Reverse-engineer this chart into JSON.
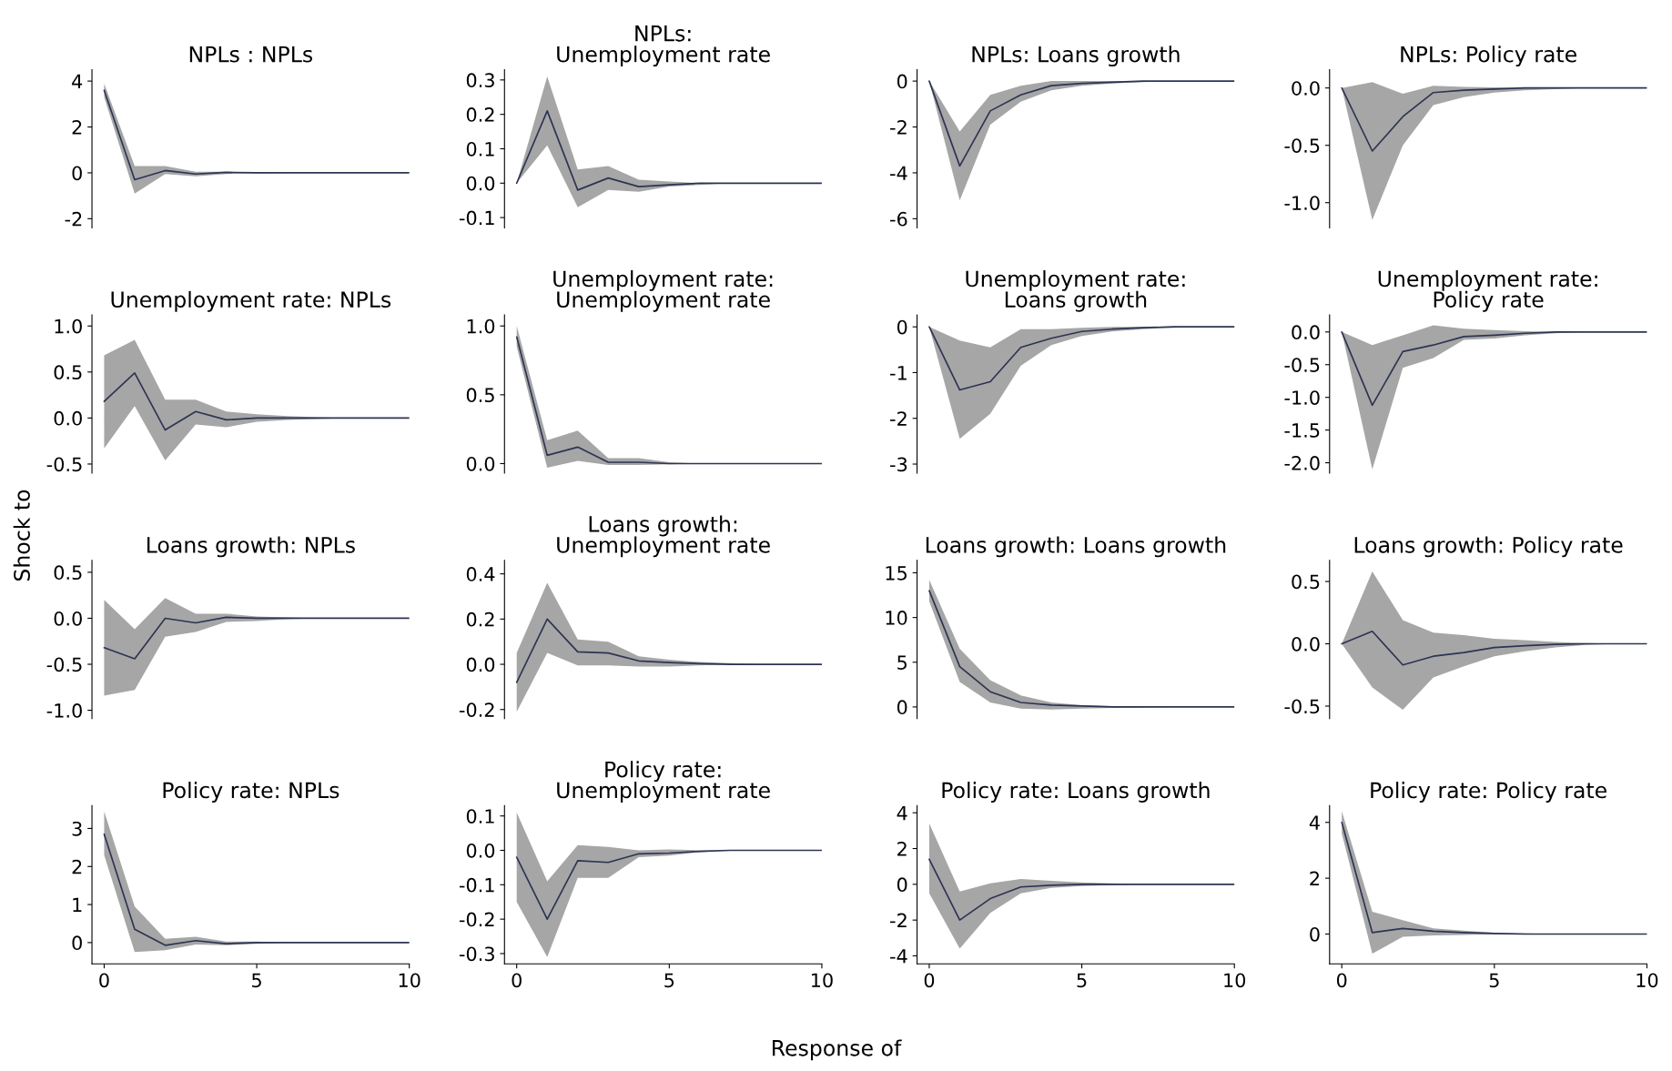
{
  "chart_data": [
    {
      "type": "line",
      "title": "NPLs : NPLs",
      "x": [
        0,
        1,
        2,
        3,
        4,
        5,
        6,
        7,
        8,
        9,
        10
      ],
      "series": [
        {
          "color": "#2d3452",
          "values": [
            3.6,
            -0.3,
            0.1,
            -0.05,
            0.02,
            0,
            0,
            0,
            0,
            0,
            0
          ],
          "lower": [
            3.3,
            -0.9,
            -0.05,
            -0.15,
            -0.05,
            -0.02,
            0,
            0,
            0,
            0,
            0
          ],
          "upper": [
            3.9,
            0.3,
            0.3,
            0.05,
            0.05,
            0.02,
            0,
            0,
            0,
            0,
            0
          ]
        }
      ],
      "xlim": [
        -0.4,
        10
      ],
      "xticks": [
        0,
        5,
        10
      ],
      "ylim": [
        -2.4,
        4.5
      ],
      "yticks": [
        -2,
        0,
        2,
        4
      ],
      "tick_labels": "y"
    },
    {
      "type": "line",
      "title": "NPLs:\nUnemployment rate",
      "x": [
        0,
        1,
        2,
        3,
        4,
        5,
        6,
        7,
        8,
        9,
        10
      ],
      "series": [
        {
          "color": "#2d3452",
          "values": [
            0,
            0.21,
            -0.02,
            0.015,
            -0.01,
            -0.005,
            0,
            0,
            0,
            0,
            0
          ],
          "lower": [
            0,
            0.11,
            -0.07,
            -0.02,
            -0.025,
            -0.01,
            -0.005,
            0,
            0,
            0,
            0
          ],
          "upper": [
            0,
            0.31,
            0.04,
            0.05,
            0.01,
            0.005,
            0,
            0,
            0,
            0,
            0
          ]
        }
      ],
      "xlim": [
        -0.4,
        10
      ],
      "xticks": [
        0,
        5,
        10
      ],
      "ylim": [
        -0.13,
        0.33
      ],
      "yticks": [
        {
          "value": -0.1,
          "label": "-0.1"
        },
        {
          "value": 0,
          "label": "0.0"
        },
        {
          "value": 0.1,
          "label": "0.1"
        },
        {
          "value": 0.2,
          "label": "0.2"
        },
        {
          "value": 0.3,
          "label": "0.3"
        }
      ],
      "tick_labels": "y"
    },
    {
      "type": "line",
      "title": "NPLs: Loans growth",
      "x": [
        0,
        1,
        2,
        3,
        4,
        5,
        6,
        7,
        8,
        9,
        10
      ],
      "series": [
        {
          "color": "#2d3452",
          "values": [
            0,
            -3.7,
            -1.3,
            -0.6,
            -0.2,
            -0.1,
            -0.05,
            0,
            0,
            0,
            0
          ],
          "lower": [
            0,
            -5.2,
            -1.9,
            -0.9,
            -0.4,
            -0.2,
            -0.1,
            -0.05,
            0,
            0,
            0
          ],
          "upper": [
            0,
            -2.2,
            -0.6,
            -0.2,
            0,
            0,
            0,
            0,
            0,
            0,
            0
          ]
        }
      ],
      "xlim": [
        -0.4,
        10
      ],
      "xticks": [
        0,
        5,
        10
      ],
      "ylim": [
        -6.4,
        0.5
      ],
      "yticks": [
        -6,
        -4,
        -2,
        0
      ],
      "tick_labels": "y"
    },
    {
      "type": "line",
      "title": "NPLs: Policy rate",
      "x": [
        0,
        1,
        2,
        3,
        4,
        5,
        6,
        7,
        8,
        9,
        10
      ],
      "series": [
        {
          "color": "#2d3452",
          "values": [
            0,
            -0.55,
            -0.25,
            -0.04,
            -0.02,
            -0.01,
            0,
            0,
            0,
            0,
            0
          ],
          "lower": [
            0,
            -1.15,
            -0.5,
            -0.15,
            -0.08,
            -0.04,
            -0.02,
            -0.01,
            0,
            0,
            0
          ],
          "upper": [
            0,
            0.05,
            -0.05,
            0.02,
            0.01,
            0.005,
            0,
            0,
            0,
            0,
            0
          ]
        }
      ],
      "xlim": [
        -0.4,
        10
      ],
      "xticks": [
        0,
        5,
        10
      ],
      "ylim": [
        -1.22,
        0.16
      ],
      "yticks": [
        {
          "value": -1,
          "label": "-1.0"
        },
        {
          "value": -0.5,
          "label": "-0.5"
        },
        {
          "value": 0,
          "label": "0.0"
        }
      ],
      "tick_labels": "y"
    },
    {
      "type": "line",
      "title": "Unemployment rate: NPLs",
      "x": [
        0,
        1,
        2,
        3,
        4,
        5,
        6,
        7,
        8,
        9,
        10
      ],
      "series": [
        {
          "color": "#2d3452",
          "values": [
            0.18,
            0.49,
            -0.13,
            0.07,
            -0.02,
            0,
            0,
            0,
            0,
            0,
            0
          ],
          "lower": [
            -0.33,
            0.13,
            -0.46,
            -0.07,
            -0.1,
            -0.04,
            -0.02,
            -0.01,
            0,
            0,
            0
          ],
          "upper": [
            0.68,
            0.85,
            0.2,
            0.2,
            0.07,
            0.04,
            0.02,
            0.01,
            0,
            0,
            0
          ]
        }
      ],
      "xlim": [
        -0.4,
        10
      ],
      "xticks": [
        0,
        5,
        10
      ],
      "ylim": [
        -0.6,
        1.12
      ],
      "yticks": [
        {
          "value": -0.5,
          "label": "-0.5"
        },
        {
          "value": 0,
          "label": "0.0"
        },
        {
          "value": 0.5,
          "label": "0.5"
        },
        {
          "value": 1,
          "label": "1.0"
        }
      ],
      "tick_labels": "y"
    },
    {
      "type": "line",
      "title": "Unemployment rate:\nUnemployment rate",
      "x": [
        0,
        1,
        2,
        3,
        4,
        5,
        6,
        7,
        8,
        9,
        10
      ],
      "series": [
        {
          "color": "#2d3452",
          "values": [
            0.92,
            0.06,
            0.12,
            0.01,
            0.01,
            0,
            0,
            0,
            0,
            0,
            0
          ],
          "lower": [
            0.85,
            -0.03,
            0.02,
            -0.01,
            -0.01,
            -0.005,
            0,
            0,
            0,
            0,
            0
          ],
          "upper": [
            1.0,
            0.17,
            0.24,
            0.04,
            0.04,
            0.01,
            0,
            0,
            0,
            0,
            0
          ]
        }
      ],
      "xlim": [
        -0.4,
        10
      ],
      "xticks": [
        0,
        5,
        10
      ],
      "ylim": [
        -0.07,
        1.08
      ],
      "yticks": [
        {
          "value": 0,
          "label": "0.0"
        },
        {
          "value": 0.5,
          "label": "0.5"
        },
        {
          "value": 1,
          "label": "1.0"
        }
      ],
      "tick_labels": "y"
    },
    {
      "type": "line",
      "title": "Unemployment rate:\nLoans growth",
      "x": [
        0,
        1,
        2,
        3,
        4,
        5,
        6,
        7,
        8,
        9,
        10
      ],
      "series": [
        {
          "color": "#2d3452",
          "values": [
            0,
            -1.38,
            -1.2,
            -0.45,
            -0.25,
            -0.1,
            -0.05,
            -0.02,
            0,
            0,
            0
          ],
          "lower": [
            0,
            -2.45,
            -1.9,
            -0.85,
            -0.4,
            -0.2,
            -0.1,
            -0.05,
            -0.02,
            0,
            0
          ],
          "upper": [
            0,
            -0.3,
            -0.45,
            -0.05,
            -0.05,
            -0.02,
            0,
            0,
            0,
            0,
            0
          ]
        }
      ],
      "xlim": [
        -0.4,
        10
      ],
      "xticks": [
        0,
        5,
        10
      ],
      "ylim": [
        -3.2,
        0.26
      ],
      "yticks": [
        -3,
        -2,
        -1,
        0
      ],
      "tick_labels": "y"
    },
    {
      "type": "line",
      "title": "Unemployment rate:\nPolicy rate",
      "x": [
        0,
        1,
        2,
        3,
        4,
        5,
        6,
        7,
        8,
        9,
        10
      ],
      "series": [
        {
          "color": "#2d3452",
          "values": [
            0,
            -1.12,
            -0.3,
            -0.2,
            -0.07,
            -0.05,
            -0.02,
            0,
            0,
            0,
            0
          ],
          "lower": [
            0,
            -2.1,
            -0.55,
            -0.4,
            -0.12,
            -0.1,
            -0.05,
            -0.02,
            0,
            0,
            0
          ],
          "upper": [
            0,
            -0.2,
            -0.05,
            0.1,
            0.05,
            0.03,
            0.01,
            0,
            0,
            0,
            0
          ]
        }
      ],
      "xlim": [
        -0.4,
        10
      ],
      "xticks": [
        0,
        5,
        10
      ],
      "ylim": [
        -2.16,
        0.26
      ],
      "yticks": [
        {
          "value": -2,
          "label": "-2.0"
        },
        {
          "value": -1.5,
          "label": "-1.5"
        },
        {
          "value": -1,
          "label": "-1.0"
        },
        {
          "value": -0.5,
          "label": "-0.5"
        },
        {
          "value": 0,
          "label": "0.0"
        }
      ],
      "tick_labels": "y"
    },
    {
      "type": "line",
      "title": "Loans growth: NPLs",
      "ylabel": "Shock to",
      "x": [
        0,
        1,
        2,
        3,
        4,
        5,
        6,
        7,
        8,
        9,
        10
      ],
      "series": [
        {
          "color": "#2d3452",
          "values": [
            -0.32,
            -0.44,
            0,
            -0.05,
            0.01,
            0,
            0,
            0,
            0,
            0,
            0
          ],
          "lower": [
            -0.84,
            -0.78,
            -0.2,
            -0.15,
            -0.04,
            -0.03,
            -0.01,
            0,
            0,
            0,
            0
          ],
          "upper": [
            0.2,
            -0.12,
            0.22,
            0.05,
            0.05,
            0.02,
            0.01,
            0,
            0,
            0,
            0
          ]
        }
      ],
      "xlim": [
        -0.4,
        10
      ],
      "xticks": [
        0,
        5,
        10
      ],
      "ylim": [
        -1.09,
        0.63
      ],
      "yticks": [
        {
          "value": -1,
          "label": "-1.0"
        },
        {
          "value": -0.5,
          "label": "-0.5"
        },
        {
          "value": 0,
          "label": "0.0"
        },
        {
          "value": 0.5,
          "label": "0.5"
        }
      ],
      "tick_labels": "y"
    },
    {
      "type": "line",
      "title": "Loans growth:\nUnemployment rate",
      "x": [
        0,
        1,
        2,
        3,
        4,
        5,
        6,
        7,
        8,
        9,
        10
      ],
      "series": [
        {
          "color": "#2d3452",
          "values": [
            -0.08,
            0.2,
            0.055,
            0.05,
            0.015,
            0.008,
            0.003,
            0,
            0,
            0,
            0
          ],
          "lower": [
            -0.21,
            0.05,
            -0.005,
            -0.005,
            -0.01,
            -0.01,
            -0.005,
            0,
            0,
            0,
            0
          ],
          "upper": [
            0.05,
            0.36,
            0.11,
            0.1,
            0.035,
            0.02,
            0.01,
            0.005,
            0,
            0,
            0
          ]
        }
      ],
      "xlim": [
        -0.4,
        10
      ],
      "xticks": [
        0,
        5,
        10
      ],
      "ylim": [
        -0.24,
        0.46
      ],
      "yticks": [
        {
          "value": -0.2,
          "label": "-0.2"
        },
        {
          "value": 0,
          "label": "0.0"
        },
        {
          "value": 0.2,
          "label": "0.2"
        },
        {
          "value": 0.4,
          "label": "0.4"
        }
      ],
      "tick_labels": "y"
    },
    {
      "type": "line",
      "title": "Loans growth: Loans growth",
      "x": [
        0,
        1,
        2,
        3,
        4,
        5,
        6,
        7,
        8,
        9,
        10
      ],
      "series": [
        {
          "color": "#2d3452",
          "values": [
            13,
            4.5,
            1.7,
            0.5,
            0.2,
            0.1,
            0,
            0,
            0,
            0,
            0
          ],
          "lower": [
            11.8,
            2.8,
            0.5,
            -0.2,
            -0.3,
            -0.2,
            -0.1,
            -0.05,
            0,
            0,
            0
          ],
          "upper": [
            14.2,
            6.5,
            3.0,
            1.3,
            0.5,
            0.2,
            0.1,
            0.05,
            0,
            0,
            0
          ]
        }
      ],
      "xlim": [
        -0.4,
        10
      ],
      "xticks": [
        0,
        5,
        10
      ],
      "ylim": [
        -1.3,
        16.4
      ],
      "yticks": [
        0,
        5,
        10,
        15
      ],
      "tick_labels": "y"
    },
    {
      "type": "line",
      "title": "Loans growth: Policy rate",
      "x": [
        0,
        1,
        2,
        3,
        4,
        5,
        6,
        7,
        8,
        9,
        10
      ],
      "series": [
        {
          "color": "#2d3452",
          "values": [
            0,
            0.1,
            -0.17,
            -0.1,
            -0.07,
            -0.03,
            -0.015,
            -0.005,
            0,
            0,
            0
          ],
          "lower": [
            0,
            -0.35,
            -0.53,
            -0.27,
            -0.18,
            -0.1,
            -0.06,
            -0.03,
            -0.01,
            0,
            0
          ],
          "upper": [
            0,
            0.58,
            0.19,
            0.09,
            0.07,
            0.04,
            0.03,
            0.015,
            0.005,
            0,
            0
          ]
        }
      ],
      "xlim": [
        -0.4,
        10
      ],
      "xticks": [
        0,
        5,
        10
      ],
      "ylim": [
        -0.6,
        0.67
      ],
      "yticks": [
        {
          "value": -0.5,
          "label": "-0.5"
        },
        {
          "value": 0,
          "label": "0.0"
        },
        {
          "value": 0.5,
          "label": "0.5"
        }
      ],
      "tick_labels": "y"
    },
    {
      "type": "line",
      "title": "Policy rate: NPLs",
      "x": [
        0,
        1,
        2,
        3,
        4,
        5,
        6,
        7,
        8,
        9,
        10
      ],
      "series": [
        {
          "color": "#2d3452",
          "values": [
            2.85,
            0.35,
            -0.07,
            0.05,
            -0.03,
            0,
            0,
            0,
            0,
            0,
            0
          ],
          "lower": [
            2.3,
            -0.25,
            -0.2,
            -0.05,
            -0.07,
            -0.03,
            0,
            0,
            0,
            0,
            0
          ],
          "upper": [
            3.45,
            0.95,
            0.1,
            0.15,
            0.03,
            0.03,
            0,
            0,
            0,
            0,
            0
          ]
        }
      ],
      "xlim": [
        -0.4,
        10
      ],
      "xticks": [
        0,
        5,
        10
      ],
      "ylim": [
        -0.56,
        3.6
      ],
      "yticks": [
        0,
        1,
        2,
        3
      ]
    },
    {
      "type": "line",
      "title": "Policy rate:\nUnemployment rate",
      "xlabel": "Response of",
      "x": [
        0,
        1,
        2,
        3,
        4,
        5,
        6,
        7,
        8,
        9,
        10
      ],
      "series": [
        {
          "color": "#2d3452",
          "values": [
            -0.02,
            -0.2,
            -0.03,
            -0.035,
            -0.01,
            -0.008,
            -0.003,
            0,
            0,
            0,
            0
          ],
          "lower": [
            -0.15,
            -0.31,
            -0.08,
            -0.08,
            -0.02,
            -0.015,
            -0.005,
            0,
            0,
            0,
            0
          ],
          "upper": [
            0.11,
            -0.09,
            0.015,
            0.01,
            0,
            0.003,
            0,
            0,
            0,
            0,
            0
          ]
        }
      ],
      "xlim": [
        -0.4,
        10
      ],
      "xticks": [
        0,
        5,
        10
      ],
      "ylim": [
        -0.33,
        0.13
      ],
      "yticks": [
        {
          "value": -0.3,
          "label": "-0.3"
        },
        {
          "value": -0.2,
          "label": "-0.2"
        },
        {
          "value": -0.1,
          "label": "-0.1"
        },
        {
          "value": 0,
          "label": "0.0"
        },
        {
          "value": 0.1,
          "label": "0.1"
        }
      ]
    },
    {
      "type": "line",
      "title": "Policy rate: Loans growth",
      "x": [
        0,
        1,
        2,
        3,
        4,
        5,
        6,
        7,
        8,
        9,
        10
      ],
      "series": [
        {
          "color": "#2d3452",
          "values": [
            1.4,
            -2.0,
            -0.8,
            -0.15,
            -0.05,
            0,
            0,
            0,
            0,
            0,
            0
          ],
          "lower": [
            -0.5,
            -3.6,
            -1.6,
            -0.5,
            -0.2,
            -0.1,
            -0.05,
            0,
            0,
            0,
            0
          ],
          "upper": [
            3.4,
            -0.4,
            0.05,
            0.3,
            0.2,
            0.1,
            0.05,
            0,
            0,
            0,
            0
          ]
        }
      ],
      "xlim": [
        -0.4,
        10
      ],
      "xticks": [
        0,
        5,
        10
      ],
      "ylim": [
        -4.45,
        4.4
      ],
      "yticks": [
        -4,
        -2,
        0,
        2,
        4
      ]
    },
    {
      "type": "line",
      "title": "Policy rate: Policy rate",
      "x": [
        0,
        1,
        2,
        3,
        4,
        5,
        6,
        7,
        8,
        9,
        10
      ],
      "series": [
        {
          "color": "#2d3452",
          "values": [
            4.0,
            0.05,
            0.2,
            0.1,
            0.05,
            0.02,
            0,
            0,
            0,
            0,
            0
          ],
          "lower": [
            3.6,
            -0.7,
            -0.1,
            -0.05,
            -0.03,
            -0.01,
            0,
            0,
            0,
            0,
            0
          ],
          "upper": [
            4.4,
            0.8,
            0.5,
            0.2,
            0.12,
            0.05,
            0.02,
            0,
            0,
            0,
            0
          ]
        }
      ],
      "xlim": [
        -0.4,
        10
      ],
      "xticks": [
        0,
        5,
        10
      ],
      "ylim": [
        -1.07,
        4.6
      ],
      "yticks": [
        0,
        2,
        4
      ]
    }
  ]
}
